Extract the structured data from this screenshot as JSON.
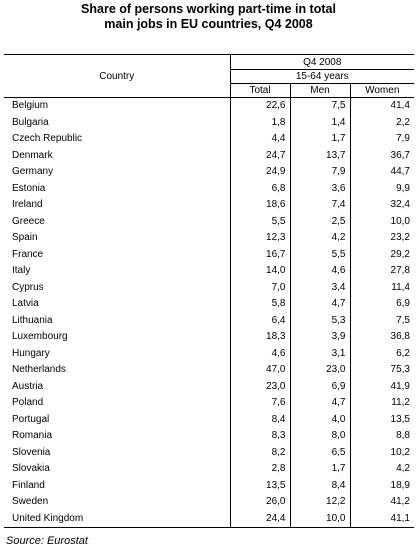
{
  "title": {
    "line1": "Share of persons working part-time in total",
    "line2": "main jobs in EU countries, Q4 2008"
  },
  "table": {
    "country_header": "Country",
    "period": "Q4 2008",
    "age_group": "15-64 years",
    "columns": [
      "Total",
      "Men",
      "Women"
    ],
    "rows": [
      {
        "country": "Belgium",
        "total": "22,6",
        "men": "7,5",
        "women": "41,4"
      },
      {
        "country": "Bulgaria",
        "total": "1,8",
        "men": "1,4",
        "women": "2,2"
      },
      {
        "country": "Czech Republic",
        "total": "4,4",
        "men": "1,7",
        "women": "7,9",
        "bold": true
      },
      {
        "country": "Denmark",
        "total": "24,7",
        "men": "13,7",
        "women": "36,7"
      },
      {
        "country": "Germany",
        "total": "24,9",
        "men": "7,9",
        "women": "44,7"
      },
      {
        "country": "Estonia",
        "total": "6,8",
        "men": "3,6",
        "women": "9,9"
      },
      {
        "country": "Ireland",
        "total": "18,6",
        "men": "7,4",
        "women": "32,4"
      },
      {
        "country": "Greece",
        "total": "5,5",
        "men": "2,5",
        "women": "10,0"
      },
      {
        "country": "Spain",
        "total": "12,3",
        "men": "4,2",
        "women": "23,2"
      },
      {
        "country": "France",
        "total": "16,7",
        "men": "5,5",
        "women": "29,2"
      },
      {
        "country": "Italy",
        "total": "14,0",
        "men": "4,6",
        "women": "27,8"
      },
      {
        "country": "Cyprus",
        "total": "7,0",
        "men": "3,4",
        "women": "11,4"
      },
      {
        "country": "Latvia",
        "total": "5,8",
        "men": "4,7",
        "women": "6,9"
      },
      {
        "country": "Lithuania",
        "total": "6,4",
        "men": "5,3",
        "women": "7,5"
      },
      {
        "country": "Luxembourg",
        "total": "18,3",
        "men": "3,9",
        "women": "36,8"
      },
      {
        "country": "Hungary",
        "total": "4,6",
        "men": "3,1",
        "women": "6,2"
      },
      {
        "country": "Netherlands",
        "total": "47,0",
        "men": "23,0",
        "women": "75,3"
      },
      {
        "country": "Austria",
        "total": "23,0",
        "men": "6,9",
        "women": "41,9"
      },
      {
        "country": "Poland",
        "total": "7,6",
        "men": "4,7",
        "women": "11,2"
      },
      {
        "country": "Portugal",
        "total": "8,4",
        "men": "4,0",
        "women": "13,5"
      },
      {
        "country": "Romania",
        "total": "8,3",
        "men": "8,0",
        "women": "8,8"
      },
      {
        "country": "Slovenia",
        "total": "8,2",
        "men": "6,5",
        "women": "10,2"
      },
      {
        "country": "Slovakia",
        "total": "2,8",
        "men": "1,7",
        "women": "4,2"
      },
      {
        "country": "Finland",
        "total": "13,5",
        "men": "8,4",
        "women": "18,9"
      },
      {
        "country": "Sweden",
        "total": "26,0",
        "men": "12,2",
        "women": "41,2"
      },
      {
        "country": "United Kingdom",
        "total": "24,4",
        "men": "10,0",
        "women": "41,1"
      }
    ]
  },
  "source": "Source: Eurostat"
}
